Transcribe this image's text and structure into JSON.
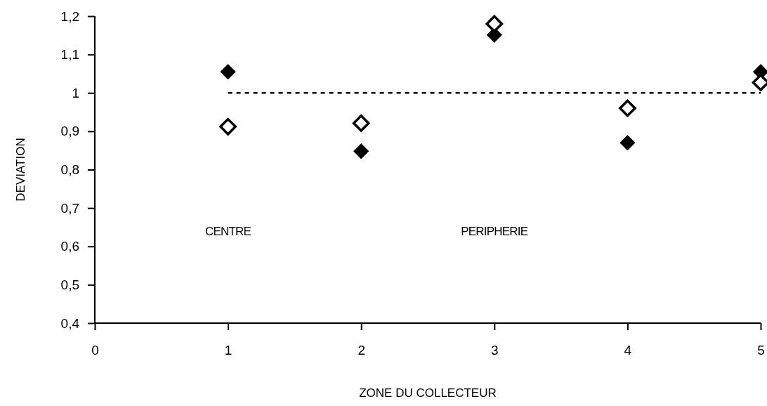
{
  "chart_data": {
    "type": "scatter",
    "xlabel": "ZONE DU COLLECTEUR",
    "ylabel": "DEVIATION",
    "x": [
      1,
      2,
      3,
      4,
      5
    ],
    "series": [
      {
        "color": "#000000",
        "values": [
          1.055,
          0.848,
          1.151,
          0.87,
          1.055
        ]
      },
      {
        "color": "#000000",
        "values": [
          0.912,
          0.921,
          1.18,
          0.96,
          1.027
        ]
      }
    ],
    "xlim": [
      0,
      5
    ],
    "xticks": [
      0,
      1,
      2,
      3,
      4,
      5
    ],
    "ylim": [
      0.4,
      1.2
    ],
    "yticks": [
      {
        "value": 0.4,
        "label": "0,4"
      },
      {
        "value": 0.5,
        "label": "0,5"
      },
      {
        "value": 0.6,
        "label": "0,6"
      },
      {
        "value": 0.7,
        "label": "0,7"
      },
      {
        "value": 0.8,
        "label": "0,8"
      },
      {
        "value": 0.9,
        "label": "0,9"
      },
      {
        "value": 1,
        "label": "1"
      },
      {
        "value": 1.1,
        "label": "1,1"
      },
      {
        "value": 1.2,
        "label": "1,2"
      }
    ],
    "ref_lines": [
      {
        "axis": "y",
        "value": 1,
        "line_style": "dashed",
        "color": "#000000"
      }
    ],
    "annotations": [
      "CENTRE",
      "PERIPHERIE"
    ],
    "marker": "diamond",
    "grid": false
  }
}
